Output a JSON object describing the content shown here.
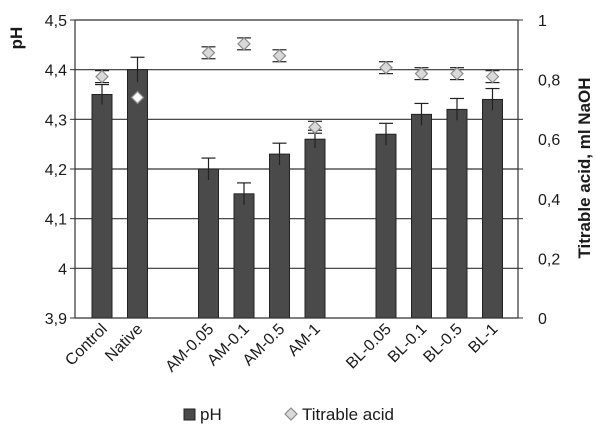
{
  "chart_data": {
    "type": "bar",
    "categories": [
      "Control",
      "Native",
      "AM-0.05",
      "AM-0.1",
      "AM-0.5",
      "AM-1",
      "BL-0.05",
      "BL-0.1",
      "BL-0.5",
      "BL-1"
    ],
    "series": [
      {
        "name": "pH",
        "type": "bar",
        "axis": "left",
        "color": "#4a4a4a",
        "values": [
          4.35,
          4.4,
          4.2,
          4.15,
          4.23,
          4.26,
          4.27,
          4.31,
          4.32,
          4.34
        ],
        "errors": [
          0.02,
          0.025,
          0.022,
          0.022,
          0.022,
          0.018,
          0.022,
          0.022,
          0.022,
          0.022
        ]
      },
      {
        "name": "Titrable acid",
        "type": "scatter",
        "marker": "diamond",
        "axis": "right",
        "color": "#bfbfbf",
        "values": [
          0.81,
          0.74,
          0.89,
          0.92,
          0.88,
          0.64,
          0.84,
          0.82,
          0.82,
          0.81
        ],
        "errors": [
          0.02,
          0.0,
          0.02,
          0.02,
          0.02,
          0.02,
          0.02,
          0.02,
          0.02,
          0.02
        ]
      }
    ],
    "ylabel": "pH",
    "y2label": "Titrable acid, ml NaOH",
    "ylim": [
      3.9,
      4.5
    ],
    "y2lim": [
      0,
      1
    ],
    "yticks": [
      "3,9",
      "4",
      "4,1",
      "4,2",
      "4,3",
      "4,4",
      "4,5"
    ],
    "y2ticks": [
      "0",
      "0,2",
      "0,4",
      "0,6",
      "0,8",
      "1"
    ],
    "grid": true,
    "legend_position": "bottom"
  }
}
